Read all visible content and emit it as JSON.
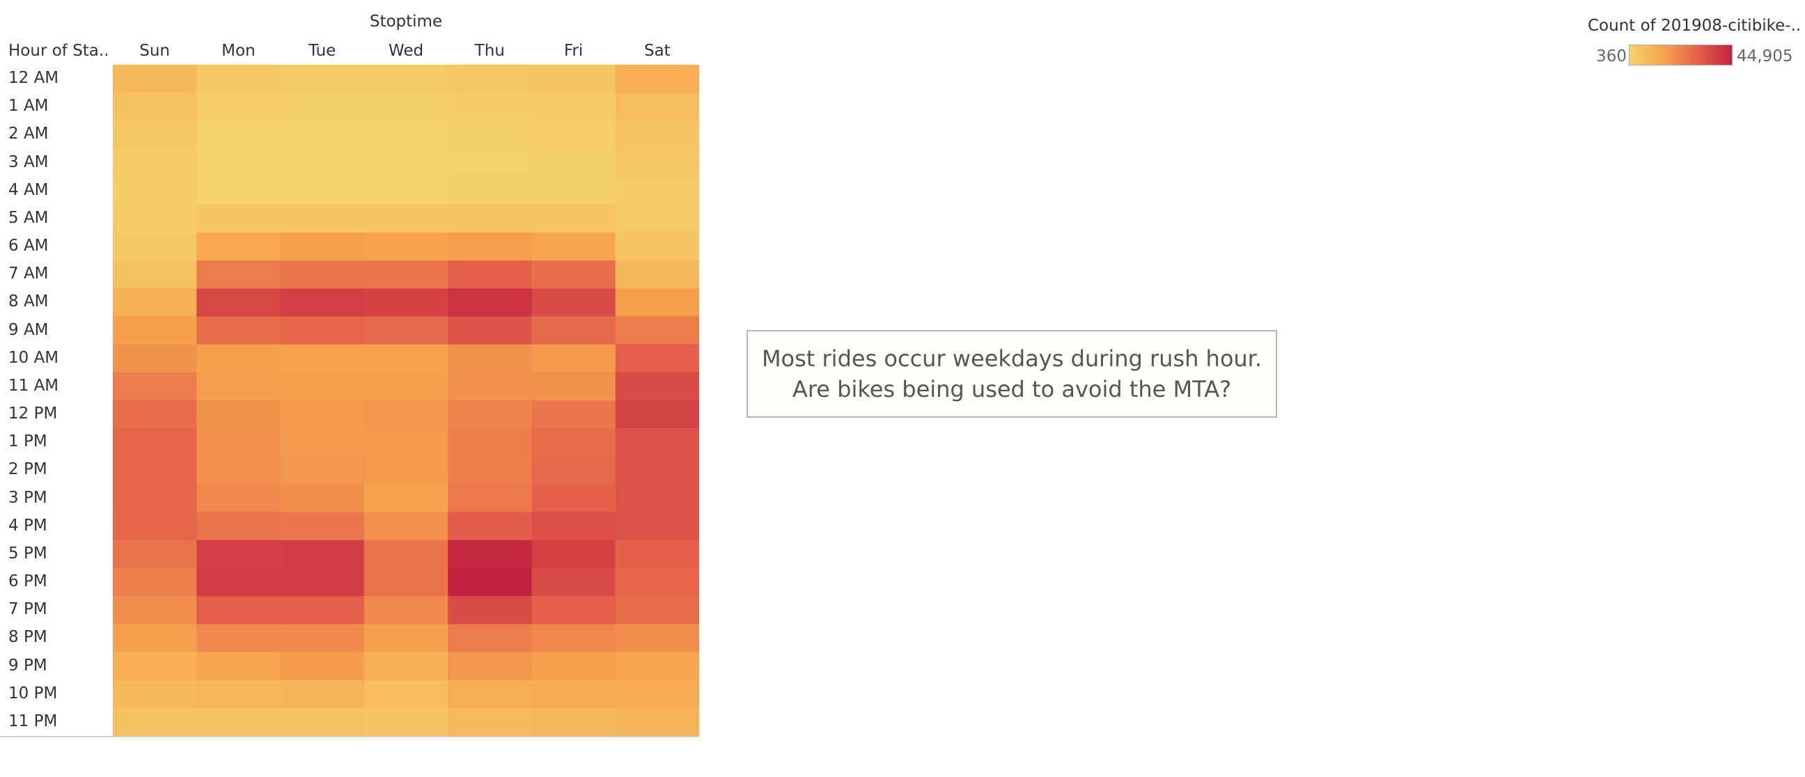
{
  "chart_data": {
    "type": "heatmap",
    "title": "Stoptime",
    "xlabel": "Stoptime",
    "ylabel": "Hour of Sta..",
    "categories": [
      "Sun",
      "Mon",
      "Tue",
      "Wed",
      "Thu",
      "Fri",
      "Sat"
    ],
    "rows": [
      "12 AM",
      "1 AM",
      "2 AM",
      "3 AM",
      "4 AM",
      "5 AM",
      "6 AM",
      "7 AM",
      "8 AM",
      "9 AM",
      "10 AM",
      "11 AM",
      "12 PM",
      "1 PM",
      "2 PM",
      "3 PM",
      "4 PM",
      "5 PM",
      "6 PM",
      "7 PM",
      "8 PM",
      "9 PM",
      "10 PM",
      "11 PM"
    ],
    "values": [
      [
        9000,
        3000,
        2500,
        2500,
        4000,
        5000,
        12000
      ],
      [
        6000,
        1500,
        1200,
        1200,
        2000,
        2500,
        7000
      ],
      [
        4000,
        800,
        700,
        700,
        1200,
        1500,
        5000
      ],
      [
        2500,
        500,
        450,
        450,
        800,
        1000,
        3500
      ],
      [
        2000,
        700,
        650,
        650,
        900,
        1100,
        2500
      ],
      [
        2500,
        4500,
        4500,
        4500,
        5000,
        5000,
        2500
      ],
      [
        3000,
        14000,
        16000,
        15500,
        16500,
        15000,
        5000
      ],
      [
        5500,
        24000,
        25000,
        25000,
        30000,
        27000,
        9000
      ],
      [
        11000,
        36000,
        38000,
        37000,
        41000,
        35000,
        16000
      ],
      [
        16000,
        27000,
        29000,
        28000,
        33000,
        28000,
        24000
      ],
      [
        19000,
        16000,
        15500,
        15500,
        19000,
        17500,
        30000
      ],
      [
        24000,
        16500,
        16000,
        16000,
        19500,
        19000,
        35000
      ],
      [
        27000,
        19000,
        17000,
        18000,
        22500,
        25000,
        36500
      ],
      [
        29000,
        19500,
        17500,
        17500,
        23500,
        27000,
        33000
      ],
      [
        29000,
        19500,
        18000,
        17500,
        23500,
        28000,
        33000
      ],
      [
        29000,
        21000,
        20000,
        15500,
        24500,
        30000,
        33000
      ],
      [
        28500,
        26000,
        25000,
        19500,
        31000,
        34000,
        33000
      ],
      [
        26000,
        38000,
        38500,
        25500,
        44000,
        37000,
        30000
      ],
      [
        23000,
        38500,
        38500,
        25500,
        44905,
        35000,
        29000
      ],
      [
        20000,
        30000,
        30000,
        21000,
        35000,
        30000,
        27000
      ],
      [
        16000,
        21000,
        21000,
        16000,
        24000,
        21500,
        20000
      ],
      [
        12000,
        15000,
        17000,
        11500,
        18000,
        16000,
        15000
      ],
      [
        8500,
        9500,
        10000,
        7500,
        11500,
        12500,
        12500
      ],
      [
        6000,
        6000,
        6000,
        4500,
        8000,
        9000,
        10000
      ]
    ],
    "color_scale": {
      "min": 360,
      "max": 44905,
      "stops": [
        "#f5d26a",
        "#f7a44e",
        "#e4604a",
        "#c3223f"
      ]
    },
    "legend": {
      "title": "Count of 201908-citibike-..",
      "min_label": "360",
      "max_label": "44,905",
      "placement": "top-right"
    },
    "annotation": "Most rides occur weekdays during rush hour. Are bikes being used to avoid the MTA?"
  }
}
